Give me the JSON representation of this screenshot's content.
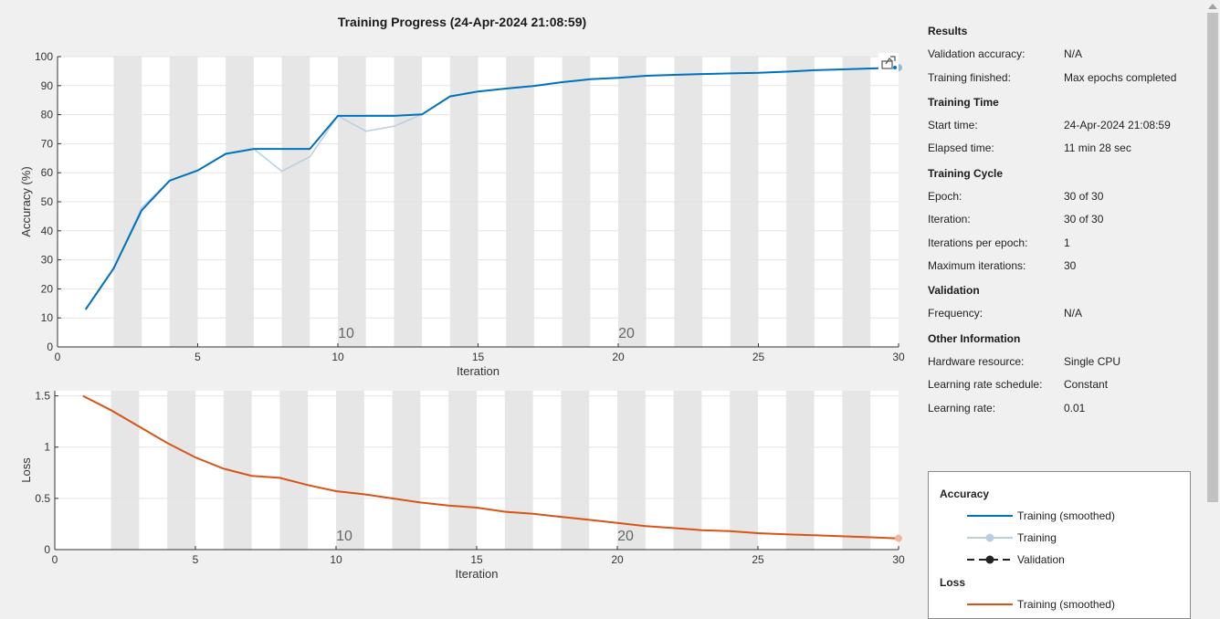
{
  "window": {
    "title": "Training Progress (24-Apr-2024 21:08:59)"
  },
  "colors": {
    "accuracy_smoothed": "#0072bd",
    "accuracy_raw": "#b7cfe0",
    "loss_smoothed": "#d95319",
    "epoch_band": "#e6e6e6",
    "grid": "#e3e3e3"
  },
  "toolbar": {
    "export_icon": "export-plot-icon"
  },
  "chart_data": [
    {
      "type": "line",
      "name": "accuracy",
      "xlabel": "Iteration",
      "ylabel": "Accuracy (%)",
      "xlim": [
        0,
        30
      ],
      "ylim": [
        0,
        100
      ],
      "xticks": [
        0,
        5,
        10,
        15,
        20,
        25,
        30
      ],
      "yticks": [
        0,
        10,
        20,
        30,
        40,
        50,
        60,
        70,
        80,
        90,
        100
      ],
      "epoch_labels": [
        10,
        20
      ],
      "grid": true,
      "series": [
        {
          "name": "Training (smoothed)",
          "x": [
            1,
            2,
            3,
            4,
            5,
            6,
            7,
            8,
            9,
            10,
            11,
            12,
            13,
            14,
            15,
            16,
            17,
            18,
            19,
            20,
            21,
            22,
            23,
            24,
            25,
            26,
            27,
            28,
            29,
            30
          ],
          "values": [
            12.9,
            27,
            47,
            57.3,
            60.8,
            66.5,
            68.2,
            68.2,
            68.2,
            79.6,
            79.6,
            79.6,
            80.1,
            86.3,
            88,
            89,
            89.9,
            91.2,
            92.2,
            92.7,
            93.4,
            93.7,
            94,
            94.2,
            94.4,
            94.8,
            95.3,
            95.6,
            95.9,
            96.2
          ]
        },
        {
          "name": "Training",
          "x": [
            1,
            2,
            3,
            4,
            5,
            6,
            7,
            8,
            9,
            10,
            11,
            12,
            13,
            14,
            15,
            16,
            17,
            18,
            19,
            20,
            21,
            22,
            23,
            24,
            25,
            26,
            27,
            28,
            29,
            30
          ],
          "values": [
            12.9,
            27,
            48,
            57.3,
            60.8,
            66.5,
            68.2,
            60.5,
            65.5,
            79.6,
            74.3,
            76,
            80.1,
            86.3,
            88,
            89,
            89.9,
            91.2,
            92.2,
            92.7,
            93.4,
            93.7,
            94,
            94.2,
            94.4,
            94.8,
            95.3,
            95.6,
            95.9,
            96.2
          ]
        }
      ]
    },
    {
      "type": "line",
      "name": "loss",
      "xlabel": "Iteration",
      "ylabel": "Loss",
      "xlim": [
        0,
        30
      ],
      "ylim": [
        0,
        1.55
      ],
      "xticks": [
        0,
        5,
        10,
        15,
        20,
        25,
        30
      ],
      "yticks": [
        0,
        0.5,
        1,
        1.5
      ],
      "ytick_labels": [
        "0",
        "0.5",
        "1",
        "1.5"
      ],
      "epoch_labels": [
        10,
        20
      ],
      "grid": true,
      "series": [
        {
          "name": "Training (smoothed)",
          "x": [
            1,
            2,
            3,
            4,
            5,
            6,
            7,
            8,
            9,
            10,
            11,
            12,
            13,
            14,
            15,
            16,
            17,
            18,
            19,
            20,
            21,
            22,
            23,
            24,
            25,
            26,
            27,
            28,
            29,
            30
          ],
          "values": [
            1.5,
            1.36,
            1.2,
            1.04,
            0.9,
            0.79,
            0.72,
            0.7,
            0.63,
            0.57,
            0.54,
            0.5,
            0.46,
            0.43,
            0.41,
            0.37,
            0.35,
            0.32,
            0.29,
            0.26,
            0.23,
            0.21,
            0.19,
            0.18,
            0.16,
            0.15,
            0.14,
            0.13,
            0.12,
            0.11
          ]
        }
      ]
    }
  ],
  "info": {
    "results_head": "Results",
    "validation_accuracy_label": "Validation accuracy:",
    "validation_accuracy_value": "N/A",
    "training_finished_label": "Training finished:",
    "training_finished_value": "Max epochs completed",
    "training_time_head": "Training Time",
    "start_time_label": "Start time:",
    "start_time_value": "24-Apr-2024 21:08:59",
    "elapsed_time_label": "Elapsed time:",
    "elapsed_time_value": "11 min 28 sec",
    "training_cycle_head": "Training Cycle",
    "epoch_label": "Epoch:",
    "epoch_value": "30 of 30",
    "iteration_label": "Iteration:",
    "iteration_value": "30 of 30",
    "iterations_per_epoch_label": "Iterations per epoch:",
    "iterations_per_epoch_value": "1",
    "max_iterations_label": "Maximum iterations:",
    "max_iterations_value": "30",
    "validation_head": "Validation",
    "frequency_label": "Frequency:",
    "frequency_value": "N/A",
    "other_head": "Other Information",
    "hardware_label": "Hardware resource:",
    "hardware_value": "Single CPU",
    "lr_schedule_label": "Learning rate schedule:",
    "lr_schedule_value": "Constant",
    "lr_label": "Learning rate:",
    "lr_value": "0.01"
  },
  "legend": {
    "accuracy_head": "Accuracy",
    "acc_smoothed": "Training (smoothed)",
    "acc_training": "Training",
    "acc_validation": "Validation",
    "loss_head": "Loss",
    "loss_smoothed": "Training (smoothed)"
  }
}
